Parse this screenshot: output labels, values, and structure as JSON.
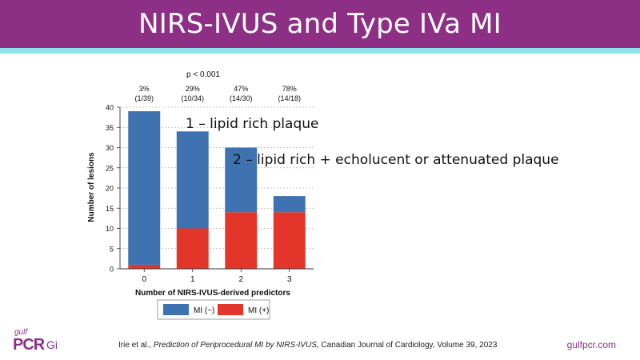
{
  "slide": {
    "title": "NIRS-IVUS and Type IVa MI",
    "annotation_1": "1 – lipid rich plaque",
    "annotation_2": "2 – lipid rich + echolucent or attenuated plaque",
    "citation_authors": "Irie et al., ",
    "citation_title": "Prediction of Periprocedural MI by NIRS-IVUS,",
    "citation_journal": " Canadian Journal of Cardiology, Volume 39, 2023",
    "url": "gulfpcr.com",
    "logo_small": "gulf",
    "logo_main": "PCR",
    "logo_sub": "Gi",
    "colors": {
      "title_bar": "#8e2f86",
      "stripe": "#8fe3ea",
      "mi_neg": "#3e72b1",
      "mi_pos": "#e4352a"
    }
  },
  "chart_data": {
    "type": "bar",
    "stacked": true,
    "categories": [
      "0",
      "1",
      "2",
      "3"
    ],
    "series": [
      {
        "name": "MI (−)",
        "values": [
          38,
          24,
          16,
          4
        ],
        "color": "#3e72b1"
      },
      {
        "name": "MI (+)",
        "values": [
          1,
          10,
          14,
          14
        ],
        "color": "#e4352a"
      }
    ],
    "top_labels": [
      [
        "3%",
        "(1/39)"
      ],
      [
        "29%",
        "(10/34)"
      ],
      [
        "47%",
        "(14/30)"
      ],
      [
        "78%",
        "(14/18)"
      ]
    ],
    "p_value": "p < 0.001",
    "xlabel": "Number of NIRS-IVUS-derived predictors",
    "ylabel": "Number of lesions",
    "yticks": [
      "0",
      "5",
      "10",
      "15",
      "20",
      "25",
      "30",
      "35",
      "40"
    ],
    "ylim": [
      0,
      40
    ],
    "grid": true,
    "legend_position": "bottom"
  }
}
